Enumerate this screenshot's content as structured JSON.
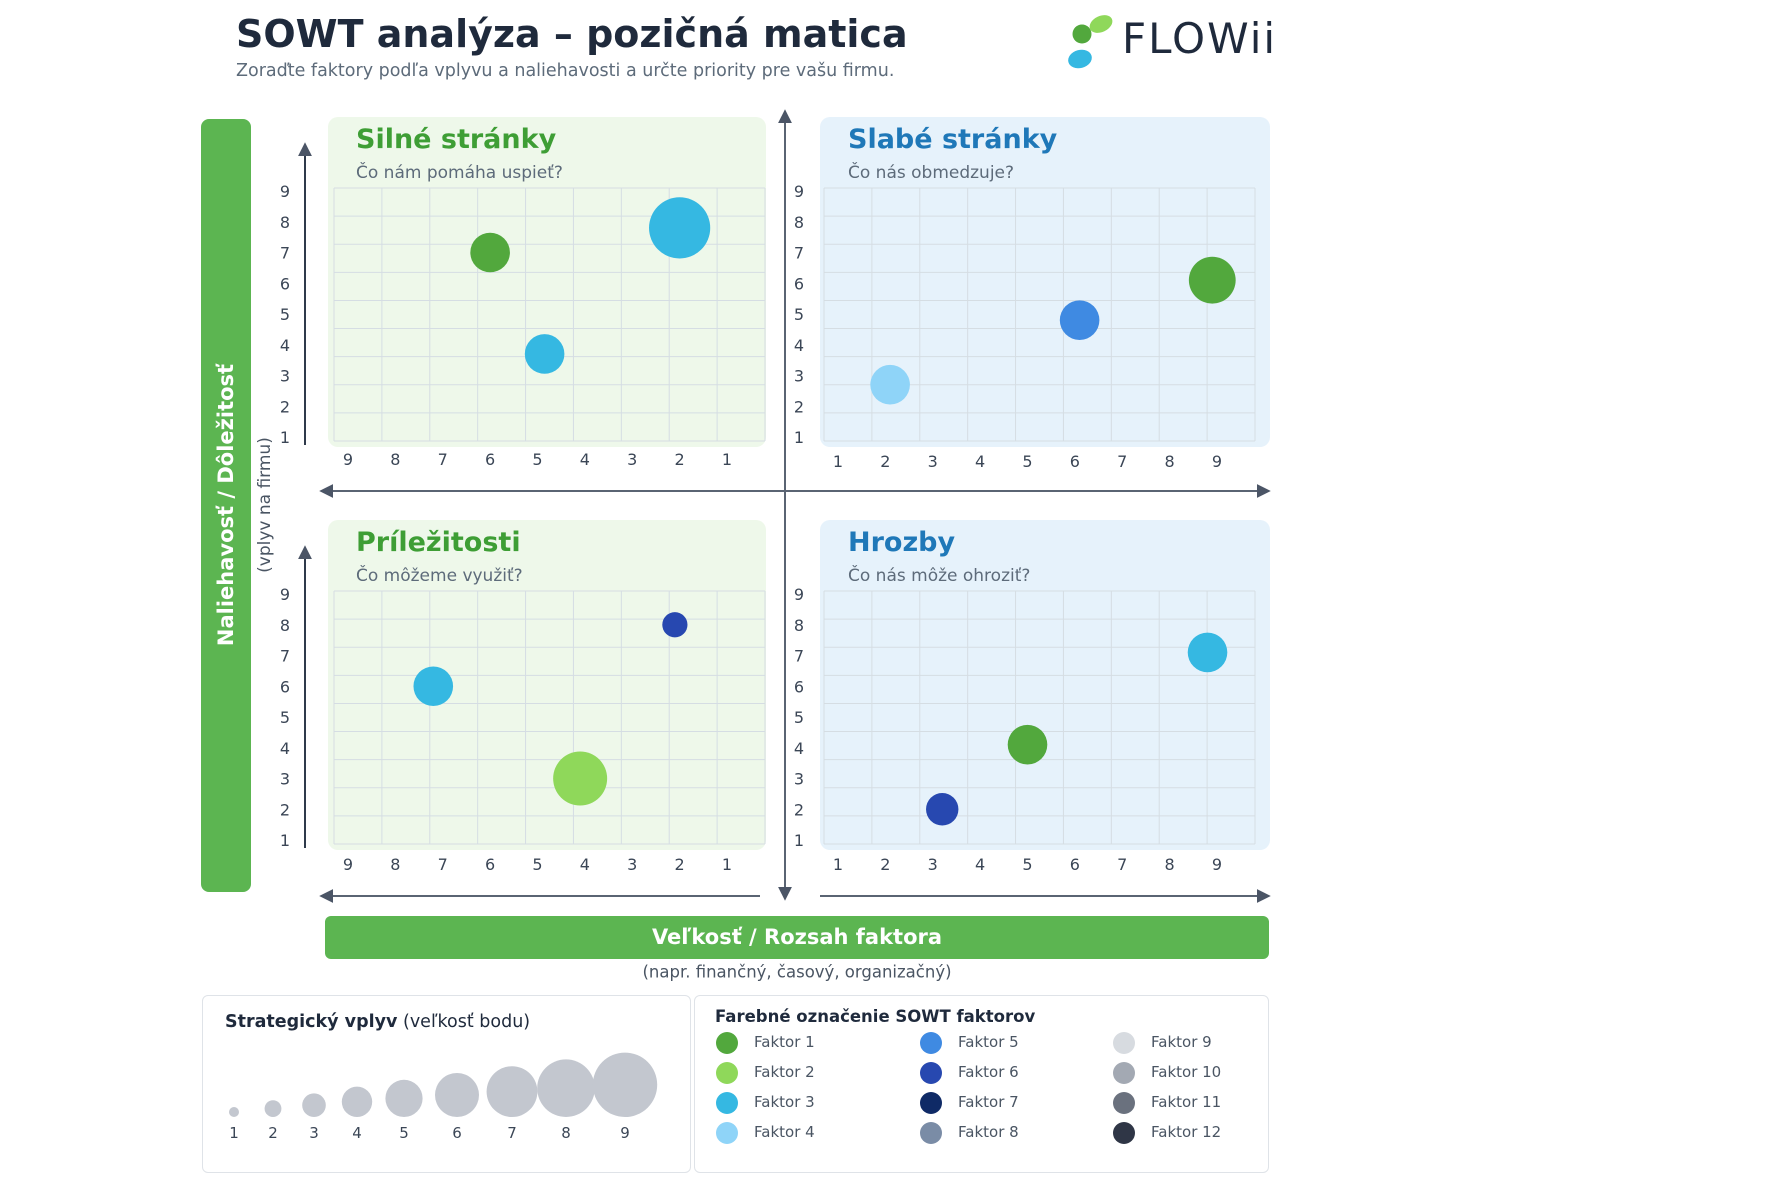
{
  "header": {
    "title": "SOWT analýza – pozičná matica",
    "subtitle": "Zoraďte faktory podľa vplyvu a naliehavosti a určte priority pre vašu firmu.",
    "logo_text": "FLOWii"
  },
  "axes": {
    "y_label": "Naliehavosť / Dôležitosť",
    "y_note": "(vplyv na firmu)",
    "x_label": "Veľkosť / Rozsah faktora",
    "x_note": "(napr. finančný, časový, organizačný)"
  },
  "colors": {
    "green_banner": "#5cb551",
    "green_title": "#3e9e35",
    "blue_title": "#1f78b8",
    "green_panel": "#eef8ea",
    "blue_panel": "#e6f2fb"
  },
  "chart_data": [
    {
      "type": "scatter",
      "title": "Silné stránky",
      "subtitle": "Čo nám pomáha uspieť?",
      "x_reversed": true,
      "xlim": [
        1,
        9
      ],
      "ylim": [
        1,
        9
      ],
      "x_ticks": [
        "9",
        "8",
        "7",
        "6",
        "5",
        "4",
        "3",
        "2",
        "1"
      ],
      "y_ticks": [
        "1",
        "2",
        "3",
        "4",
        "5",
        "6",
        "7",
        "8",
        "9"
      ],
      "points": [
        {
          "x": 6,
          "y": 7,
          "size": 4,
          "factor": "Faktor 1"
        },
        {
          "x": 2,
          "y": 7.8,
          "size": 7,
          "factor": "Faktor 3"
        },
        {
          "x": 4.85,
          "y": 3.7,
          "size": 4,
          "factor": "Faktor 3"
        }
      ]
    },
    {
      "type": "scatter",
      "title": "Slabé stránky",
      "subtitle": "Čo nás obmedzuje?",
      "x_reversed": false,
      "xlim": [
        1,
        9
      ],
      "ylim": [
        1,
        9
      ],
      "x_ticks": [
        "1",
        "2",
        "3",
        "4",
        "5",
        "6",
        "7",
        "8",
        "9"
      ],
      "y_ticks": [
        "1",
        "2",
        "3",
        "4",
        "5",
        "6",
        "7",
        "8",
        "9"
      ],
      "points": [
        {
          "x": 2.1,
          "y": 2.7,
          "size": 4,
          "factor": "Faktor 4"
        },
        {
          "x": 6.1,
          "y": 4.8,
          "size": 4,
          "factor": "Faktor 5"
        },
        {
          "x": 8.9,
          "y": 6.1,
          "size": 5,
          "factor": "Faktor 1"
        }
      ]
    },
    {
      "type": "scatter",
      "title": "Príležitosti",
      "subtitle": "Čo môžeme využiť?",
      "x_reversed": true,
      "xlim": [
        1,
        9
      ],
      "ylim": [
        1,
        9
      ],
      "x_ticks": [
        "9",
        "8",
        "7",
        "6",
        "5",
        "4",
        "3",
        "2",
        "1"
      ],
      "y_ticks": [
        "1",
        "2",
        "3",
        "4",
        "5",
        "6",
        "7",
        "8",
        "9"
      ],
      "points": [
        {
          "x": 7.2,
          "y": 6,
          "size": 4,
          "factor": "Faktor 3"
        },
        {
          "x": 2.1,
          "y": 8,
          "size": 2,
          "factor": "Faktor 6"
        },
        {
          "x": 4.1,
          "y": 3,
          "size": 6,
          "factor": "Faktor 2"
        }
      ]
    },
    {
      "type": "scatter",
      "title": "Hrozby",
      "subtitle": "Čo nás môže ohroziť?",
      "x_reversed": false,
      "xlim": [
        1,
        9
      ],
      "ylim": [
        1,
        9
      ],
      "x_ticks": [
        "1",
        "2",
        "3",
        "4",
        "5",
        "6",
        "7",
        "8",
        "9"
      ],
      "y_ticks": [
        "1",
        "2",
        "3",
        "4",
        "5",
        "6",
        "7",
        "8",
        "9"
      ],
      "points": [
        {
          "x": 3.2,
          "y": 2,
          "size": 3,
          "factor": "Faktor 6"
        },
        {
          "x": 5,
          "y": 4.1,
          "size": 4,
          "factor": "Faktor 1"
        },
        {
          "x": 8.8,
          "y": 7.1,
          "size": 4,
          "factor": "Faktor 3"
        }
      ]
    }
  ],
  "size_legend": {
    "title_bold": "Strategický vplyv",
    "title_rest": " (veľkosť bodu)",
    "levels": [
      "1",
      "2",
      "3",
      "4",
      "5",
      "6",
      "7",
      "8",
      "9"
    ]
  },
  "color_legend": {
    "title": "Farebné označenie SOWT faktorov",
    "items": [
      {
        "label": "Faktor 1",
        "color": "#52a83d"
      },
      {
        "label": "Faktor 2",
        "color": "#8fd85a"
      },
      {
        "label": "Faktor 3",
        "color": "#35b8e2"
      },
      {
        "label": "Faktor 4",
        "color": "#8fd4f8"
      },
      {
        "label": "Faktor 5",
        "color": "#3f8ae2"
      },
      {
        "label": "Faktor 6",
        "color": "#2748b0"
      },
      {
        "label": "Faktor 7",
        "color": "#0f2a66"
      },
      {
        "label": "Faktor 8",
        "color": "#7a8ca6"
      },
      {
        "label": "Faktor 9",
        "color": "#d7dbe0"
      },
      {
        "label": "Faktor 10",
        "color": "#a3a9b3"
      },
      {
        "label": "Faktor 11",
        "color": "#6a717e"
      },
      {
        "label": "Faktor 12",
        "color": "#2f3646"
      }
    ]
  }
}
